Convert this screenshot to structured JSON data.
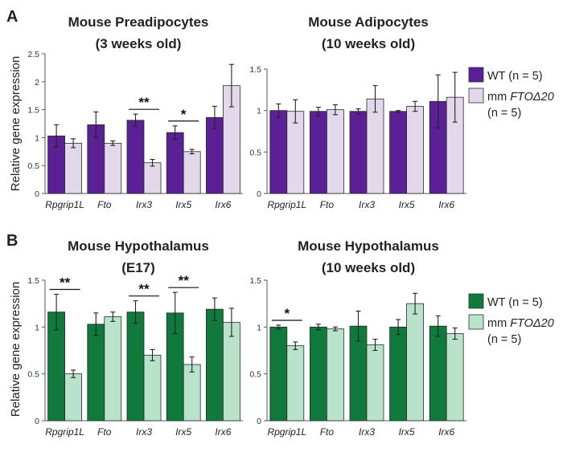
{
  "panels": {
    "A": "A",
    "B": "B"
  },
  "ylabel": "Relative gene expression",
  "legend": {
    "wt": "WT (n = 5)",
    "mm_prefix": "mm ",
    "mm_italic": "FTOΔ20",
    "mm_n": "(n = 5)"
  },
  "colors": {
    "wt_purple": "#5b1f96",
    "mm_purple": "#e2d8ea",
    "wt_green": "#0f7a3c",
    "mm_green": "#b8e2c9"
  },
  "chart_data": [
    {
      "type": "bar",
      "title": "Mouse Preadipocytes",
      "subtitle": "(3 weeks old)",
      "ylabel": "Relative gene expression",
      "ylim": [
        0,
        2.5
      ],
      "yticks": [
        "0",
        "0.5",
        "1",
        "1.5",
        "2",
        "2.5"
      ],
      "categories": [
        "Rpgrip1L",
        "Fto",
        "Irx3",
        "Irx5",
        "Irx6"
      ],
      "series": [
        {
          "name": "WT (n = 5)",
          "values": [
            1.03,
            1.23,
            1.31,
            1.09,
            1.36
          ],
          "errors": [
            0.2,
            0.23,
            0.11,
            0.12,
            0.2
          ]
        },
        {
          "name": "mm FTOΔ20 (n = 5)",
          "values": [
            0.9,
            0.9,
            0.55,
            0.75,
            1.93
          ],
          "errors": [
            0.08,
            0.04,
            0.06,
            0.04,
            0.38
          ]
        }
      ],
      "significance": [
        {
          "category": "Irx3",
          "label": "**"
        },
        {
          "category": "Irx5",
          "label": "*"
        }
      ]
    },
    {
      "type": "bar",
      "title": "Mouse Adipocytes",
      "subtitle": "(10 weeks old)",
      "ylim": [
        0,
        1.5
      ],
      "yticks": [
        "0",
        "0.5",
        "1",
        "1.5"
      ],
      "categories": [
        "Rpgrip1L",
        "Fto",
        "Irx3",
        "Irx5",
        "Irx6"
      ],
      "series": [
        {
          "name": "WT (n = 5)",
          "values": [
            1.0,
            0.99,
            0.99,
            0.99,
            1.11
          ],
          "errors": [
            0.08,
            0.05,
            0.03,
            0.01,
            0.32
          ]
        },
        {
          "name": "mm FTOΔ20 (n = 5)",
          "values": [
            0.99,
            1.01,
            1.14,
            1.05,
            1.16
          ],
          "errors": [
            0.14,
            0.06,
            0.16,
            0.06,
            0.3
          ]
        }
      ],
      "significance": []
    },
    {
      "type": "bar",
      "title": "Mouse Hypothalamus",
      "subtitle": "(E17)",
      "ylabel": "Relative gene expression",
      "ylim": [
        0,
        1.5
      ],
      "yticks": [
        "0",
        "0.5",
        "1",
        "1.5"
      ],
      "categories": [
        "Rpgrip1L",
        "Fto",
        "Irx3",
        "Irx5",
        "Irx6"
      ],
      "series": [
        {
          "name": "WT (n = 5)",
          "values": [
            1.16,
            1.03,
            1.16,
            1.15,
            1.19
          ],
          "errors": [
            0.19,
            0.12,
            0.12,
            0.22,
            0.12
          ]
        },
        {
          "name": "mm FTOΔ20 (n = 5)",
          "values": [
            0.5,
            1.11,
            0.7,
            0.6,
            1.05
          ],
          "errors": [
            0.04,
            0.05,
            0.06,
            0.08,
            0.15
          ]
        }
      ],
      "significance": [
        {
          "category": "Rpgrip1L",
          "label": "**"
        },
        {
          "category": "Irx3",
          "label": "**"
        },
        {
          "category": "Irx5",
          "label": "**"
        }
      ]
    },
    {
      "type": "bar",
      "title": "Mouse Hypothalamus",
      "subtitle": "(10 weeks old)",
      "ylim": [
        0,
        1.5
      ],
      "yticks": [
        "0",
        "0.5",
        "1",
        "1.5"
      ],
      "categories": [
        "Rpgrip1L",
        "Fto",
        "Irx3",
        "Irx5",
        "Irx6"
      ],
      "series": [
        {
          "name": "WT (n = 5)",
          "values": [
            1.0,
            1.0,
            1.01,
            1.0,
            1.01
          ],
          "errors": [
            0.02,
            0.03,
            0.16,
            0.08,
            0.11
          ]
        },
        {
          "name": "mm FTOΔ20 (n = 5)",
          "values": [
            0.8,
            0.98,
            0.81,
            1.25,
            0.93
          ],
          "errors": [
            0.04,
            0.02,
            0.06,
            0.11,
            0.06
          ]
        }
      ],
      "significance": [
        {
          "category": "Rpgrip1L",
          "label": "*"
        }
      ]
    }
  ]
}
